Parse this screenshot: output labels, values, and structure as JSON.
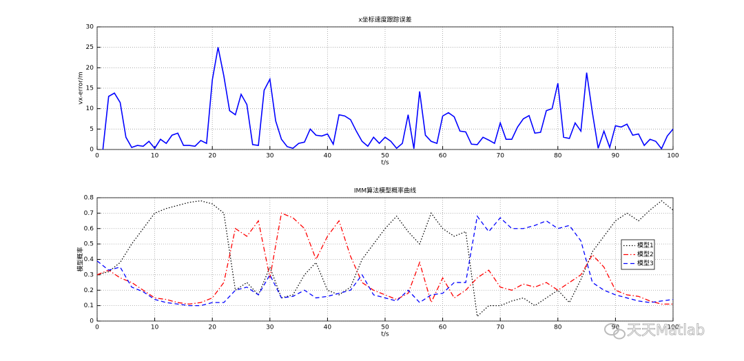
{
  "chart_data": [
    {
      "type": "line",
      "title": "x坐标速度跟踪误差",
      "xlabel": "t/s",
      "ylabel": "vx-error/m",
      "x": [
        1,
        2,
        3,
        4,
        5,
        6,
        7,
        8,
        9,
        10,
        11,
        12,
        13,
        14,
        15,
        16,
        17,
        18,
        19,
        20,
        21,
        22,
        23,
        24,
        25,
        26,
        27,
        28,
        29,
        30,
        31,
        32,
        33,
        34,
        35,
        36,
        37,
        38,
        39,
        40,
        41,
        42,
        43,
        44,
        45,
        46,
        47,
        48,
        49,
        50,
        51,
        52,
        53,
        54,
        55,
        56,
        57,
        58,
        59,
        60,
        61,
        62,
        63,
        64,
        65,
        66,
        67,
        68,
        69,
        70,
        71,
        72,
        73,
        74,
        75,
        76,
        77,
        78,
        79,
        80,
        81,
        82,
        83,
        84,
        85,
        86,
        87,
        88,
        89,
        90,
        91,
        92,
        93,
        94,
        95,
        96,
        97,
        98,
        99,
        100
      ],
      "series": [
        {
          "color": "#0000ff",
          "linestyle": "-",
          "values": [
            0,
            13,
            13.8,
            11.5,
            3,
            0.5,
            1,
            0.8,
            2,
            0.3,
            2.5,
            1.5,
            3.5,
            4,
            1,
            1,
            0.8,
            2.2,
            1.5,
            17,
            25,
            18,
            9.5,
            8.5,
            13.5,
            11,
            1.2,
            1,
            14.5,
            17.2,
            7,
            2.5,
            0.7,
            0.3,
            1.5,
            1.8,
            5,
            3.5,
            3.3,
            3.8,
            1.3,
            8.5,
            8.2,
            7.3,
            4.5,
            2,
            0.8,
            3,
            1.5,
            3,
            2,
            0.3,
            1.5,
            8.5,
            0.2,
            14.2,
            3.5,
            2,
            1.5,
            8.2,
            9,
            8,
            4.5,
            4.3,
            1.3,
            1.2,
            3,
            2.3,
            1.5,
            6.5,
            2.5,
            2.5,
            5.5,
            7.5,
            8.3,
            4,
            4.2,
            9.5,
            10,
            16.2,
            3,
            2.7,
            6.5,
            4.5,
            18.8,
            9,
            0.3,
            4.5,
            0.5,
            5.8,
            5.5,
            6.2,
            3.5,
            3.8,
            1,
            2.5,
            2,
            0.2,
            3.3,
            5
          ]
        }
      ],
      "xlim": [
        0,
        100
      ],
      "xticks": [
        0,
        10,
        20,
        30,
        40,
        50,
        60,
        70,
        80,
        90,
        100
      ],
      "ylim": [
        0,
        30
      ],
      "yticks": [
        0,
        5,
        10,
        15,
        20,
        25,
        30
      ],
      "grid": true
    },
    {
      "type": "line",
      "title": "IMM算法模型概率曲线",
      "xlabel": "t/s",
      "ylabel": "模型概率",
      "x": [
        0,
        2,
        4,
        6,
        8,
        10,
        12,
        14,
        16,
        18,
        20,
        22,
        24,
        26,
        28,
        30,
        32,
        34,
        36,
        38,
        40,
        42,
        44,
        46,
        48,
        50,
        52,
        54,
        56,
        58,
        60,
        62,
        64,
        66,
        68,
        70,
        72,
        74,
        76,
        78,
        80,
        82,
        84,
        86,
        88,
        90,
        92,
        94,
        96,
        98,
        100
      ],
      "series": [
        {
          "name": "模型1",
          "color": "#000000",
          "linestyle": ":",
          "values": [
            0.3,
            0.32,
            0.38,
            0.5,
            0.6,
            0.7,
            0.73,
            0.75,
            0.77,
            0.78,
            0.76,
            0.7,
            0.2,
            0.25,
            0.17,
            0.35,
            0.15,
            0.17,
            0.3,
            0.38,
            0.2,
            0.17,
            0.22,
            0.4,
            0.5,
            0.6,
            0.68,
            0.58,
            0.5,
            0.7,
            0.6,
            0.55,
            0.58,
            0.03,
            0.1,
            0.1,
            0.13,
            0.15,
            0.1,
            0.15,
            0.2,
            0.12,
            0.27,
            0.45,
            0.55,
            0.65,
            0.7,
            0.65,
            0.72,
            0.78,
            0.72
          ]
        },
        {
          "name": "模型2",
          "color": "#ff0000",
          "linestyle": "-.",
          "values": [
            0.3,
            0.33,
            0.28,
            0.25,
            0.2,
            0.15,
            0.14,
            0.12,
            0.11,
            0.12,
            0.15,
            0.25,
            0.6,
            0.55,
            0.65,
            0.28,
            0.7,
            0.67,
            0.6,
            0.4,
            0.55,
            0.65,
            0.42,
            0.25,
            0.2,
            0.17,
            0.14,
            0.18,
            0.38,
            0.12,
            0.28,
            0.15,
            0.2,
            0.28,
            0.33,
            0.22,
            0.2,
            0.24,
            0.22,
            0.25,
            0.2,
            0.25,
            0.3,
            0.43,
            0.35,
            0.2,
            0.17,
            0.16,
            0.13,
            0.11,
            0.11
          ]
        },
        {
          "name": "模型3",
          "color": "#0000ff",
          "linestyle": "--",
          "values": [
            0.39,
            0.33,
            0.35,
            0.22,
            0.19,
            0.14,
            0.12,
            0.11,
            0.1,
            0.1,
            0.12,
            0.12,
            0.2,
            0.22,
            0.17,
            0.3,
            0.15,
            0.16,
            0.2,
            0.15,
            0.16,
            0.18,
            0.2,
            0.3,
            0.17,
            0.15,
            0.13,
            0.2,
            0.12,
            0.17,
            0.18,
            0.25,
            0.25,
            0.68,
            0.58,
            0.67,
            0.6,
            0.6,
            0.62,
            0.65,
            0.6,
            0.62,
            0.52,
            0.25,
            0.2,
            0.17,
            0.15,
            0.13,
            0.12,
            0.13,
            0.14
          ]
        }
      ],
      "xlim": [
        0,
        100
      ],
      "xticks": [
        0,
        10,
        20,
        30,
        40,
        50,
        60,
        70,
        80,
        90,
        100
      ],
      "ylim": [
        0,
        0.8
      ],
      "yticks": [
        0,
        0.1,
        0.2,
        0.3,
        0.4,
        0.5,
        0.6,
        0.7,
        0.8
      ],
      "grid": true,
      "legend": "east"
    }
  ],
  "watermark": "天天Matlab"
}
